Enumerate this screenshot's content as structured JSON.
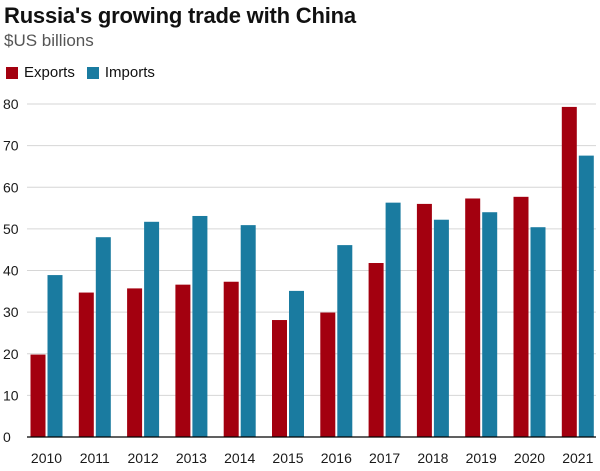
{
  "chart_data": {
    "type": "bar",
    "title": "Russia's growing trade with China",
    "subtitle": "$US billions",
    "xlabel": "",
    "ylabel": "",
    "categories": [
      "2010",
      "2011",
      "2012",
      "2013",
      "2014",
      "2015",
      "2016",
      "2017",
      "2018",
      "2019",
      "2020",
      "2021"
    ],
    "series": [
      {
        "name": "Exports",
        "color": "#a3000f",
        "values": [
          19.8,
          34.7,
          35.7,
          36.6,
          37.3,
          28.1,
          29.9,
          41.8,
          56.0,
          57.3,
          57.7,
          79.3
        ]
      },
      {
        "name": "Imports",
        "color": "#1a7ba0",
        "values": [
          38.9,
          48.0,
          51.7,
          53.1,
          50.9,
          35.1,
          46.1,
          56.3,
          52.2,
          54.0,
          50.4,
          67.6
        ]
      }
    ],
    "ylim": [
      0,
      80
    ],
    "yticks": [
      0,
      10,
      20,
      30,
      40,
      50,
      60,
      70,
      80
    ],
    "legend_position": "top-left",
    "grid": true
  }
}
